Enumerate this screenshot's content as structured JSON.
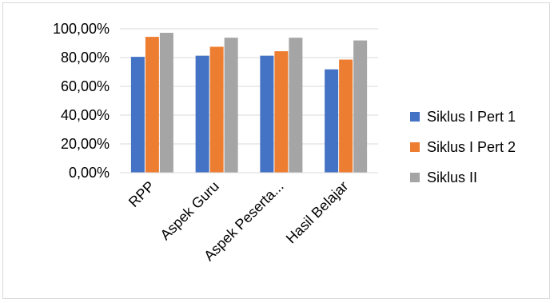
{
  "chart_data": {
    "type": "bar",
    "title": "",
    "xlabel": "",
    "ylabel": "",
    "categories": [
      "RPP",
      "Aspek Guru",
      "Aspek Peserta...",
      "Hasil Belajar"
    ],
    "series": [
      {
        "name": "Siklus I Pert 1",
        "color": "#4472C4",
        "values": [
          80.5,
          81.3,
          81.3,
          71.8
        ]
      },
      {
        "name": "Siklus I Pert 2",
        "color": "#ED7D31",
        "values": [
          94.4,
          87.5,
          84.4,
          78.6
        ]
      },
      {
        "name": "Siklus II",
        "color": "#A5A5A5",
        "values": [
          97.2,
          93.8,
          93.8,
          91.9
        ]
      }
    ],
    "ylim": [
      0,
      100
    ],
    "yticks": [
      0,
      20,
      40,
      60,
      80,
      100
    ],
    "ytick_labels": [
      "0,00%",
      "20,00%",
      "40,00%",
      "60,00%",
      "80,00%",
      "100,00%"
    ],
    "grid": true,
    "legend_position": "right"
  }
}
